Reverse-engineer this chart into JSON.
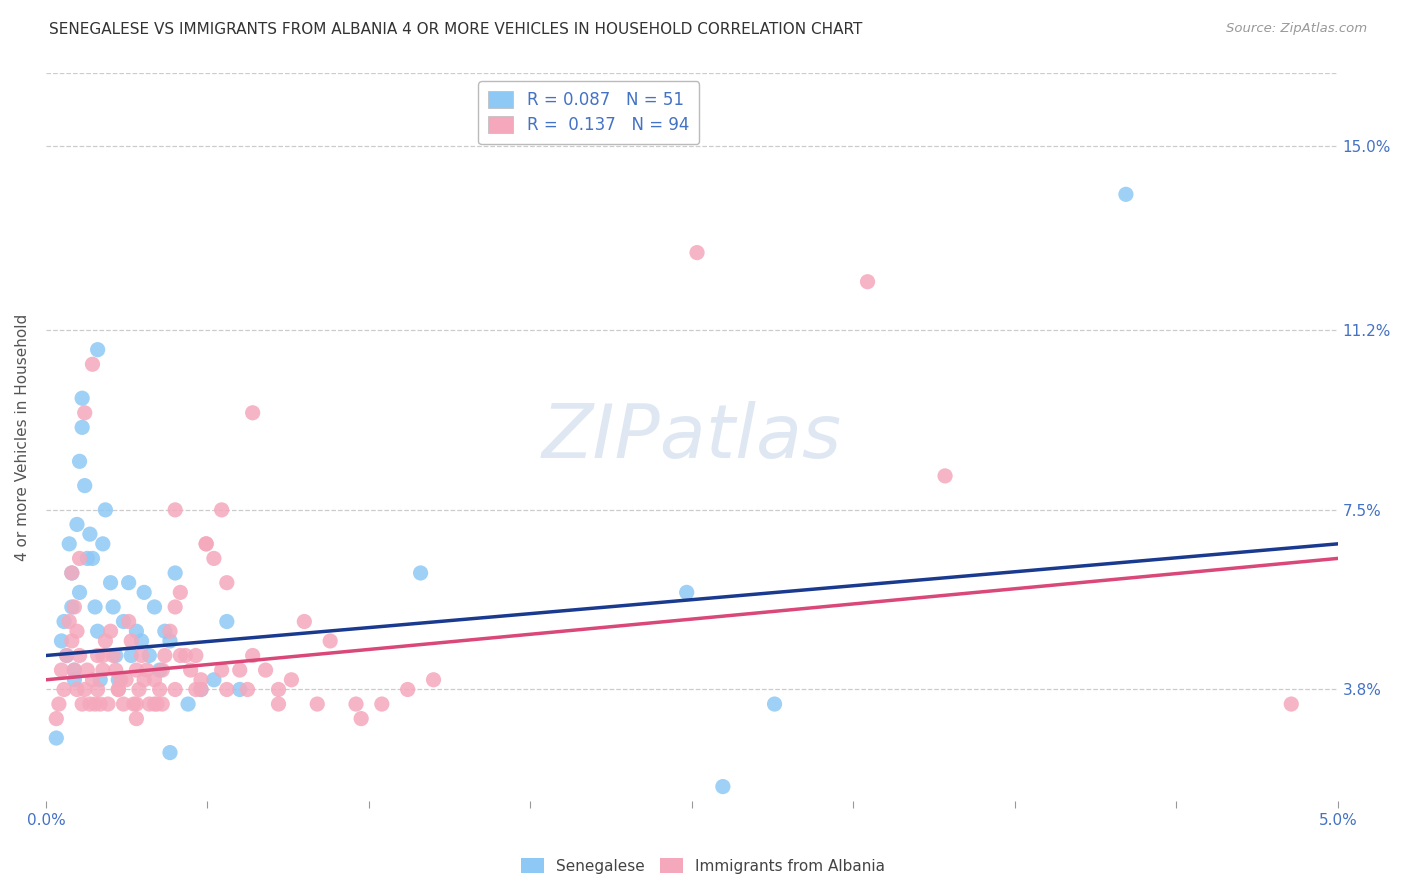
{
  "title": "SENEGALESE VS IMMIGRANTS FROM ALBANIA 4 OR MORE VEHICLES IN HOUSEHOLD CORRELATION CHART",
  "source": "Source: ZipAtlas.com",
  "ylabel": "4 or more Vehicles in Household",
  "ytick_labels": [
    "3.8%",
    "7.5%",
    "11.2%",
    "15.0%"
  ],
  "ytick_values": [
    3.8,
    7.5,
    11.2,
    15.0
  ],
  "xlim": [
    0.0,
    5.0
  ],
  "ylim": [
    1.5,
    16.5
  ],
  "xtick_positions": [
    0.0,
    0.625,
    1.25,
    1.875,
    2.5,
    3.125,
    3.75,
    4.375,
    5.0
  ],
  "xtick_labels_show": [
    "0.0%",
    "",
    "",
    "",
    "",
    "",
    "",
    "",
    "5.0%"
  ],
  "legend_blue_label": "R = 0.087   N = 51",
  "legend_pink_label": "R =  0.137   N = 94",
  "legend_label_blue": "Senegalese",
  "legend_label_pink": "Immigrants from Albania",
  "blue_color": "#8EC8F5",
  "pink_color": "#F5A8BC",
  "blue_line_color": "#1A3A8F",
  "pink_line_color": "#D94878",
  "axis_label_color": "#4472C4",
  "grid_color": "#CCCCCC",
  "blue_line_x0": 0.0,
  "blue_line_y0": 4.5,
  "blue_line_x1": 5.0,
  "blue_line_y1": 6.8,
  "pink_line_x0": 0.0,
  "pink_line_y0": 4.0,
  "pink_line_x1": 5.0,
  "pink_line_y1": 6.5,
  "senegalese_x": [
    0.04,
    0.06,
    0.07,
    0.08,
    0.09,
    0.1,
    0.1,
    0.11,
    0.11,
    0.12,
    0.13,
    0.13,
    0.14,
    0.14,
    0.15,
    0.16,
    0.17,
    0.18,
    0.19,
    0.2,
    0.21,
    0.22,
    0.23,
    0.25,
    0.26,
    0.27,
    0.28,
    0.3,
    0.32,
    0.33,
    0.35,
    0.37,
    0.38,
    0.4,
    0.42,
    0.44,
    0.46,
    0.48,
    0.5,
    0.55,
    0.6,
    0.65,
    0.7,
    0.75,
    1.45,
    2.48,
    2.62,
    2.82,
    0.2,
    4.18,
    0.48
  ],
  "senegalese_y": [
    2.8,
    4.8,
    5.2,
    4.5,
    6.8,
    5.5,
    6.2,
    4.2,
    4.0,
    7.2,
    5.8,
    8.5,
    9.8,
    9.2,
    8.0,
    6.5,
    7.0,
    6.5,
    5.5,
    5.0,
    4.0,
    6.8,
    7.5,
    6.0,
    5.5,
    4.5,
    4.0,
    5.2,
    6.0,
    4.5,
    5.0,
    4.8,
    5.8,
    4.5,
    5.5,
    4.2,
    5.0,
    4.8,
    6.2,
    3.5,
    3.8,
    4.0,
    5.2,
    3.8,
    6.2,
    5.8,
    1.8,
    3.5,
    10.8,
    14.0,
    2.5
  ],
  "albania_x": [
    0.04,
    0.05,
    0.06,
    0.07,
    0.08,
    0.09,
    0.1,
    0.1,
    0.11,
    0.11,
    0.12,
    0.12,
    0.13,
    0.13,
    0.14,
    0.15,
    0.15,
    0.16,
    0.17,
    0.18,
    0.18,
    0.19,
    0.2,
    0.2,
    0.21,
    0.22,
    0.23,
    0.24,
    0.25,
    0.26,
    0.27,
    0.28,
    0.29,
    0.3,
    0.31,
    0.32,
    0.33,
    0.34,
    0.35,
    0.36,
    0.37,
    0.38,
    0.39,
    0.4,
    0.42,
    0.43,
    0.44,
    0.45,
    0.46,
    0.48,
    0.5,
    0.52,
    0.54,
    0.56,
    0.58,
    0.6,
    0.62,
    0.65,
    0.68,
    0.7,
    0.75,
    0.8,
    0.85,
    0.9,
    0.95,
    1.0,
    1.1,
    1.2,
    1.3,
    1.4,
    1.5,
    0.52,
    2.52,
    3.18,
    3.48,
    0.5,
    0.62,
    0.7,
    0.8,
    0.9,
    0.22,
    0.28,
    0.35,
    0.42,
    0.5,
    0.58,
    0.68,
    0.78,
    1.05,
    1.22,
    4.82,
    0.35,
    0.45,
    0.6
  ],
  "albania_y": [
    3.2,
    3.5,
    4.2,
    3.8,
    4.5,
    5.2,
    4.8,
    6.2,
    4.2,
    5.5,
    3.8,
    5.0,
    4.5,
    6.5,
    3.5,
    3.8,
    9.5,
    4.2,
    3.5,
    4.0,
    10.5,
    3.5,
    3.8,
    4.5,
    3.5,
    4.2,
    4.8,
    3.5,
    5.0,
    4.5,
    4.2,
    3.8,
    4.0,
    3.5,
    4.0,
    5.2,
    4.8,
    3.5,
    3.5,
    3.8,
    4.5,
    4.0,
    4.2,
    3.5,
    4.0,
    3.5,
    3.8,
    4.2,
    4.5,
    5.0,
    5.5,
    5.8,
    4.5,
    4.2,
    3.8,
    4.0,
    6.8,
    6.5,
    7.5,
    6.0,
    4.2,
    4.5,
    4.2,
    3.8,
    4.0,
    5.2,
    4.8,
    3.5,
    3.5,
    3.8,
    4.0,
    4.5,
    12.8,
    12.2,
    8.2,
    7.5,
    6.8,
    3.8,
    9.5,
    3.5,
    4.5,
    3.8,
    4.2,
    3.5,
    3.8,
    4.5,
    4.2,
    3.8,
    3.5,
    3.2,
    3.5,
    3.2,
    3.5,
    3.8
  ]
}
